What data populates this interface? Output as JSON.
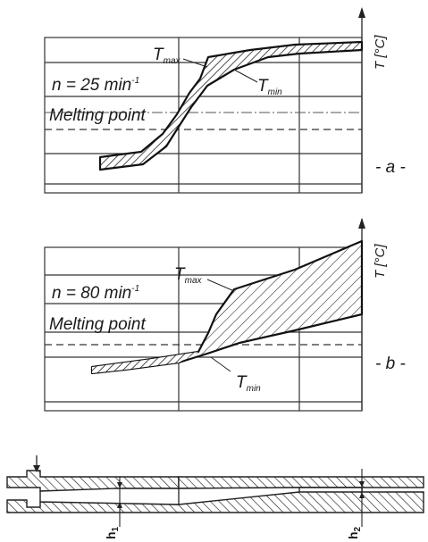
{
  "panel_a": {
    "speed_label": "n = 25 min",
    "speed_exp": "-1",
    "melting_label": "Melting point",
    "tmax_label": "T",
    "tmax_sub": "max",
    "tmin_label": "T",
    "tmin_sub": "min",
    "axis_label": "T [°C]",
    "side_label": "- a -"
  },
  "panel_b": {
    "speed_label": "n = 80 min",
    "speed_exp": "-1",
    "melting_label": "Melting point",
    "tmax_label": "T",
    "tmax_sub": "max",
    "tmin_label": "T",
    "tmin_sub": "min",
    "axis_label": "T [°C]",
    "side_label": "- b -"
  },
  "channel": {
    "h1_label": "h",
    "h1_sub": "1",
    "h2_label": "h",
    "h2_sub": "2"
  }
}
